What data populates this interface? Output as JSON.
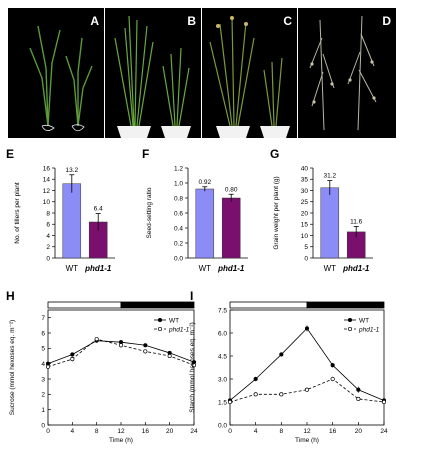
{
  "photos": [
    {
      "label": "A",
      "description_icon": "rice-seedlings-photo"
    },
    {
      "label": "B",
      "description_icon": "rice-plants-pots-photo"
    },
    {
      "label": "C",
      "description_icon": "rice-plants-mature-photo"
    },
    {
      "label": "D",
      "description_icon": "rice-panicles-photo"
    }
  ],
  "colors": {
    "wt": "#8c8cf7",
    "mutant": "#7a0f6e",
    "photo_bg": "#000000"
  },
  "chart_data": [
    {
      "panel": "E",
      "type": "bar",
      "categories": [
        "WT",
        "phd1-1"
      ],
      "values": [
        13.2,
        6.4
      ],
      "errors": [
        1.6,
        1.5
      ],
      "data_labels": [
        "13.2",
        "6.4"
      ],
      "ylabel": "No. of tillers per plant",
      "ylim": [
        0,
        16
      ],
      "yticks": [
        "0",
        "2",
        "4",
        "6",
        "8",
        "10",
        "12",
        "14",
        "16"
      ]
    },
    {
      "panel": "F",
      "type": "bar",
      "categories": [
        "WT",
        "phd1-1"
      ],
      "values": [
        0.92,
        0.8
      ],
      "errors": [
        0.03,
        0.05
      ],
      "data_labels": [
        "0.92",
        "0.80"
      ],
      "ylabel": "Seed-setting ratio",
      "ylim": [
        0,
        1.2
      ],
      "yticks": [
        "0.0",
        "0.2",
        "0.4",
        "0.6",
        "0.8",
        "1.0",
        "1.2"
      ]
    },
    {
      "panel": "G",
      "type": "bar",
      "categories": [
        "WT",
        "phd1-1"
      ],
      "values": [
        31.2,
        11.6
      ],
      "errors": [
        3.2,
        2.4
      ],
      "data_labels": [
        "31.2",
        "11.6"
      ],
      "ylabel": "Grain weight per plant (g)",
      "ylim": [
        0,
        40
      ],
      "yticks": [
        "0",
        "5",
        "10",
        "15",
        "20",
        "25",
        "30",
        "35",
        "40"
      ]
    },
    {
      "panel": "H",
      "type": "line",
      "x": [
        0,
        4,
        8,
        12,
        16,
        20,
        24
      ],
      "xticks": [
        "0",
        "4",
        "8",
        "12",
        "16",
        "20",
        "24"
      ],
      "xlim": [
        0,
        24
      ],
      "series": [
        {
          "name": "WT",
          "values": [
            4.0,
            4.6,
            5.5,
            5.4,
            5.2,
            4.7,
            4.1
          ],
          "errors": [
            0.1,
            0.1,
            0.1,
            0.15,
            0.1,
            0.1,
            0.1
          ]
        },
        {
          "name": "phd1-1",
          "values": [
            3.8,
            4.3,
            5.6,
            5.2,
            4.8,
            4.5,
            3.9
          ],
          "errors": [
            0.1,
            0.15,
            0.1,
            0.15,
            0.1,
            0.1,
            0.1
          ]
        }
      ],
      "xlabel": "Time (h)",
      "ylabel": "Sucrose (mmol hexoses eq. m⁻²)",
      "ylim": [
        0,
        7.5
      ],
      "yticks": [
        "0",
        "1",
        "2",
        "3",
        "4",
        "5",
        "6",
        "7"
      ],
      "light_period": [
        0,
        12
      ],
      "dark_period": [
        12,
        24
      ]
    },
    {
      "panel": "I",
      "type": "line",
      "x": [
        0,
        4,
        8,
        12,
        16,
        20,
        24
      ],
      "xticks": [
        "0",
        "4",
        "8",
        "12",
        "16",
        "20",
        "24"
      ],
      "xlim": [
        0,
        24
      ],
      "series": [
        {
          "name": "WT",
          "values": [
            1.6,
            3.0,
            4.6,
            6.3,
            3.9,
            2.3,
            1.6
          ],
          "errors": [
            0.1,
            0.15,
            0.1,
            0.2,
            0.15,
            0.2,
            0.1
          ]
        },
        {
          "name": "phd1-1",
          "values": [
            1.5,
            2.0,
            2.0,
            2.3,
            3.0,
            1.7,
            1.5
          ],
          "errors": [
            0.1,
            0.1,
            0.1,
            0.1,
            0.15,
            0.1,
            0.1
          ]
        }
      ],
      "xlabel": "Time (h)",
      "ylabel": "Starch (mmol hexoses eq. m⁻²)",
      "ylim": [
        0,
        7.5
      ],
      "yticks": [
        "0.0",
        "1.5",
        "3.0",
        "4.5",
        "6.0",
        "7.5"
      ],
      "light_period": [
        0,
        12
      ],
      "dark_period": [
        12,
        24
      ]
    }
  ]
}
